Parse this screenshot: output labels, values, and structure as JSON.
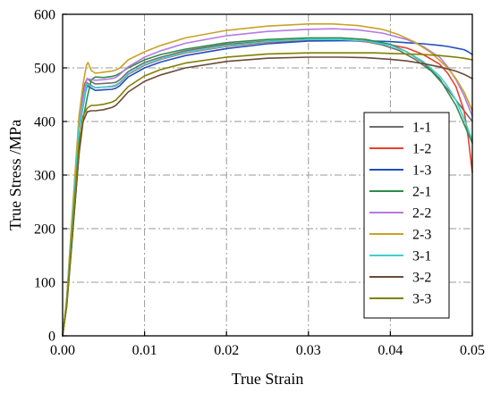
{
  "chart_data": {
    "type": "line",
    "xlabel": "True Strain",
    "ylabel": "True Stress /MPa",
    "xlim": [
      0,
      0.05
    ],
    "ylim": [
      0,
      600
    ],
    "xticks": [
      "0.00",
      "0.01",
      "0.02",
      "0.03",
      "0.04",
      "0.05"
    ],
    "yticks": [
      "0",
      "100",
      "200",
      "300",
      "400",
      "500",
      "600"
    ],
    "grid": true,
    "legend_position": "right",
    "series": [
      {
        "name": "1-1",
        "color": "#6e6e6e",
        "x": [
          0,
          0.0005,
          0.001,
          0.002,
          0.0027,
          0.003,
          0.0035,
          0.004,
          0.005,
          0.006,
          0.0065,
          0.007,
          0.008,
          0.01,
          0.012,
          0.015,
          0.02,
          0.025,
          0.03,
          0.033,
          0.035,
          0.037,
          0.039,
          0.041,
          0.043,
          0.045,
          0.047,
          0.048,
          0.049,
          0.05
        ],
        "y": [
          0,
          70,
          180,
          400,
          470,
          480,
          474,
          470,
          471,
          472,
          473,
          478,
          493,
          510,
          520,
          532,
          544,
          550,
          553,
          553,
          552,
          549,
          543,
          533,
          516,
          494,
          460,
          440,
          420,
          400
        ]
      },
      {
        "name": "1-2",
        "color": "#e8412c",
        "x": [
          0,
          0.0005,
          0.001,
          0.002,
          0.0028,
          0.003,
          0.0035,
          0.004,
          0.005,
          0.006,
          0.0065,
          0.007,
          0.008,
          0.01,
          0.012,
          0.015,
          0.02,
          0.025,
          0.03,
          0.033,
          0.036,
          0.039,
          0.042,
          0.044,
          0.046,
          0.047,
          0.048,
          0.049,
          0.0495,
          0.05
        ],
        "y": [
          0,
          65,
          175,
          390,
          460,
          472,
          467,
          463,
          464,
          465,
          467,
          472,
          488,
          505,
          516,
          528,
          540,
          548,
          551,
          552,
          550,
          546,
          537,
          525,
          507,
          490,
          465,
          420,
          370,
          305
        ]
      },
      {
        "name": "1-3",
        "color": "#1f4fbf",
        "x": [
          0,
          0.0005,
          0.001,
          0.002,
          0.0028,
          0.003,
          0.0035,
          0.004,
          0.005,
          0.006,
          0.0065,
          0.007,
          0.008,
          0.01,
          0.012,
          0.015,
          0.02,
          0.025,
          0.03,
          0.035,
          0.038,
          0.04,
          0.042,
          0.044,
          0.046,
          0.047,
          0.048,
          0.049,
          0.0495,
          0.05
        ],
        "y": [
          0,
          60,
          170,
          385,
          455,
          467,
          462,
          458,
          459,
          460,
          462,
          467,
          483,
          500,
          511,
          523,
          536,
          545,
          550,
          551,
          550,
          549,
          547,
          545,
          542,
          540,
          537,
          534,
          530,
          525
        ]
      },
      {
        "name": "2-1",
        "color": "#2e8b4a",
        "x": [
          0,
          0.0005,
          0.001,
          0.002,
          0.0025,
          0.003,
          0.0035,
          0.004,
          0.005,
          0.006,
          0.0065,
          0.007,
          0.008,
          0.01,
          0.012,
          0.015,
          0.02,
          0.025,
          0.03,
          0.034,
          0.037,
          0.04,
          0.042,
          0.044,
          0.046,
          0.047,
          0.048,
          0.049,
          0.05
        ],
        "y": [
          0,
          60,
          150,
          340,
          405,
          445,
          478,
          483,
          482,
          484,
          486,
          490,
          500,
          515,
          525,
          535,
          547,
          553,
          556,
          556,
          553,
          544,
          530,
          510,
          480,
          455,
          430,
          395,
          360
        ]
      },
      {
        "name": "2-2",
        "color": "#b57be0",
        "x": [
          0,
          0.0005,
          0.001,
          0.002,
          0.0028,
          0.003,
          0.0035,
          0.004,
          0.005,
          0.006,
          0.0065,
          0.007,
          0.008,
          0.01,
          0.012,
          0.015,
          0.02,
          0.025,
          0.03,
          0.033,
          0.036,
          0.039,
          0.042,
          0.044,
          0.046,
          0.047,
          0.048,
          0.049,
          0.05
        ],
        "y": [
          0,
          65,
          180,
          400,
          470,
          480,
          478,
          477,
          478,
          480,
          482,
          488,
          502,
          520,
          532,
          546,
          560,
          568,
          572,
          573,
          571,
          565,
          553,
          540,
          520,
          502,
          478,
          448,
          410
        ]
      },
      {
        "name": "2-3",
        "color": "#c9a227",
        "x": [
          0,
          0.0005,
          0.001,
          0.002,
          0.0025,
          0.0029,
          0.0031,
          0.0035,
          0.004,
          0.005,
          0.006,
          0.0065,
          0.007,
          0.008,
          0.01,
          0.012,
          0.015,
          0.02,
          0.025,
          0.03,
          0.033,
          0.036,
          0.039,
          0.041,
          0.043,
          0.045,
          0.047,
          0.048,
          0.049,
          0.05
        ],
        "y": [
          0,
          70,
          190,
          410,
          470,
          505,
          510,
          495,
          490,
          492,
          494,
          496,
          500,
          515,
          530,
          542,
          556,
          570,
          578,
          582,
          582,
          579,
          572,
          562,
          548,
          528,
          500,
          480,
          455,
          420
        ]
      },
      {
        "name": "3-1",
        "color": "#3fcfd0",
        "x": [
          0,
          0.0005,
          0.001,
          0.002,
          0.0028,
          0.003,
          0.0035,
          0.004,
          0.005,
          0.006,
          0.0065,
          0.007,
          0.008,
          0.01,
          0.012,
          0.015,
          0.02,
          0.025,
          0.03,
          0.034,
          0.037,
          0.04,
          0.042,
          0.044,
          0.046,
          0.047,
          0.048,
          0.049,
          0.05
        ],
        "y": [
          0,
          62,
          172,
          388,
          458,
          470,
          466,
          463,
          464,
          466,
          468,
          473,
          489,
          506,
          517,
          529,
          541,
          549,
          553,
          553,
          550,
          542,
          530,
          512,
          485,
          465,
          440,
          405,
          365
        ]
      },
      {
        "name": "3-2",
        "color": "#6b4a3a",
        "x": [
          0,
          0.0005,
          0.001,
          0.002,
          0.0025,
          0.003,
          0.0035,
          0.004,
          0.005,
          0.006,
          0.0065,
          0.007,
          0.008,
          0.01,
          0.012,
          0.015,
          0.02,
          0.025,
          0.03,
          0.034,
          0.037,
          0.04,
          0.042,
          0.044,
          0.046,
          0.048,
          0.049,
          0.05
        ],
        "y": [
          0,
          55,
          150,
          340,
          400,
          418,
          420,
          420,
          422,
          426,
          430,
          438,
          455,
          475,
          487,
          500,
          512,
          518,
          520,
          520,
          519,
          516,
          513,
          508,
          502,
          494,
          488,
          480
        ]
      },
      {
        "name": "3-3",
        "color": "#808000",
        "x": [
          0,
          0.0005,
          0.001,
          0.002,
          0.0025,
          0.003,
          0.0035,
          0.004,
          0.005,
          0.006,
          0.0065,
          0.007,
          0.008,
          0.01,
          0.012,
          0.015,
          0.02,
          0.025,
          0.03,
          0.035,
          0.038,
          0.04,
          0.042,
          0.044,
          0.046,
          0.048,
          0.049,
          0.05
        ],
        "y": [
          0,
          58,
          160,
          360,
          410,
          425,
          430,
          430,
          432,
          436,
          440,
          448,
          465,
          485,
          497,
          509,
          520,
          526,
          528,
          528,
          528,
          527,
          526,
          525,
          523,
          520,
          518,
          515
        ]
      }
    ]
  }
}
